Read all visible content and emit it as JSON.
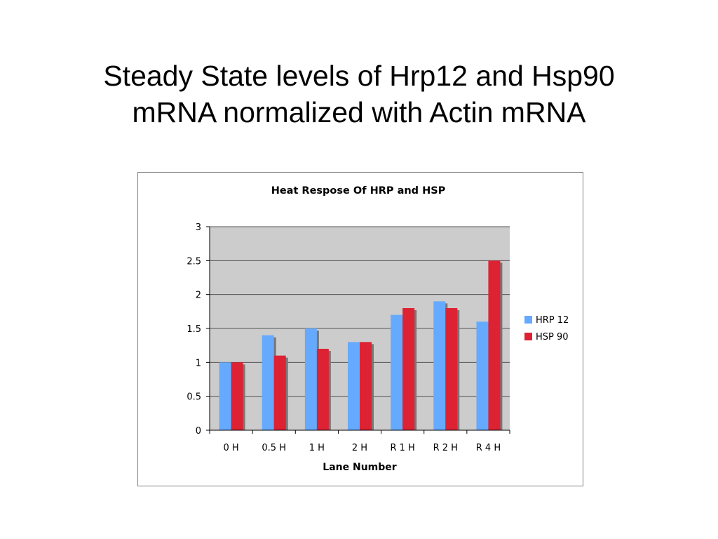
{
  "slide": {
    "title_line1": "Steady State levels of Hrp12 and Hsp90",
    "title_line2": "mRNA normalized with Actin mRNA"
  },
  "chart_data": {
    "type": "bar",
    "title": "Heat Respose Of HRP and HSP",
    "xlabel": "Lane Number",
    "ylabel": "",
    "categories": [
      "0 H",
      "0.5 H",
      "1 H",
      "2 H",
      "R 1 H",
      "R 2 H",
      "R 4 H"
    ],
    "series": [
      {
        "name": "HRP 12",
        "color": "#66aaff",
        "values": [
          1.0,
          1.4,
          1.5,
          1.3,
          1.7,
          1.9,
          1.6
        ]
      },
      {
        "name": "HSP 90",
        "color": "#dd2233",
        "values": [
          1.0,
          1.1,
          1.2,
          1.3,
          1.8,
          1.8,
          2.5
        ]
      }
    ],
    "ylim": [
      0,
      3
    ],
    "yticks": [
      "0",
      "0.5",
      "1",
      "1.5",
      "2",
      "2.5",
      "3"
    ],
    "grid": true,
    "legend_position": "right",
    "plot_background": "#cccccc"
  }
}
